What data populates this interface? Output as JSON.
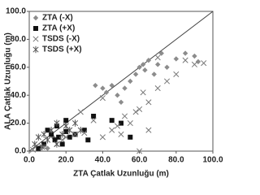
{
  "chart_data": {
    "type": "scatter",
    "xlabel": "ZTA Çatlak Uzunluğu (m)",
    "ylabel": "ALA Çatlak Uzunluğu (m)",
    "xlim": [
      0,
      100
    ],
    "ylim": [
      0,
      100
    ],
    "xticks": [
      {
        "value": 0,
        "label": "0.0"
      },
      {
        "value": 20,
        "label": "20.0"
      },
      {
        "value": 40,
        "label": "40.0"
      },
      {
        "value": 60,
        "label": "60.0"
      },
      {
        "value": 80,
        "label": "80.0"
      },
      {
        "value": 100,
        "label": "100.0"
      }
    ],
    "yticks": [
      {
        "value": 0,
        "label": "0.0"
      },
      {
        "value": 20,
        "label": "20.0"
      },
      {
        "value": 40,
        "label": "40.0"
      },
      {
        "value": 60,
        "label": "60.0"
      },
      {
        "value": 80,
        "label": "80.0"
      },
      {
        "value": 100,
        "label": "100.0"
      }
    ],
    "legend": "upper left",
    "series": [
      {
        "name": "ZTA (-X)",
        "color": "#8c8c8c",
        "marker": "diamond",
        "x": [
          10,
          13,
          36,
          40,
          42,
          45,
          48,
          50,
          52,
          55,
          58,
          60,
          62,
          63,
          65,
          68,
          70,
          72,
          75,
          80,
          85,
          90,
          92
        ],
        "y": [
          2,
          10,
          47,
          45,
          42,
          47,
          40,
          35,
          45,
          50,
          55,
          60,
          62,
          58,
          65,
          55,
          62,
          70,
          60,
          66,
          70,
          68,
          64
        ]
      },
      {
        "name": "ZTA (+X)",
        "color": "#111111",
        "marker": "square",
        "x": [
          5,
          8,
          10,
          12,
          14,
          15,
          16,
          18,
          20,
          22,
          25,
          30,
          32,
          35,
          45,
          50,
          55,
          20
        ],
        "y": [
          2,
          5,
          15,
          12,
          8,
          18,
          10,
          5,
          14,
          10,
          12,
          15,
          8,
          25,
          22,
          20,
          10,
          22
        ]
      },
      {
        "name": "TSDS (-X)",
        "color": "#777777",
        "marker": "x",
        "x": [
          2,
          8,
          15,
          18,
          20,
          25,
          28,
          30,
          35,
          40,
          45,
          48,
          50,
          52,
          55,
          58,
          60,
          65,
          62,
          70,
          75,
          80,
          85,
          90,
          95,
          60,
          65,
          40,
          70
        ],
        "y": [
          1,
          3,
          5,
          8,
          10,
          12,
          28,
          13,
          22,
          10,
          15,
          18,
          12,
          25,
          20,
          28,
          30,
          35,
          42,
          45,
          50,
          55,
          65,
          62,
          63,
          0,
          15,
          38,
          67
        ]
      },
      {
        "name": "TSDS (+X)",
        "color": "#555555",
        "marker": "asterisk",
        "x": [
          3,
          5,
          8,
          10,
          12,
          15,
          18,
          20,
          22,
          25,
          15,
          7,
          28
        ],
        "y": [
          5,
          10,
          12,
          8,
          15,
          20,
          12,
          18,
          15,
          20,
          5,
          3,
          15
        ]
      }
    ]
  }
}
